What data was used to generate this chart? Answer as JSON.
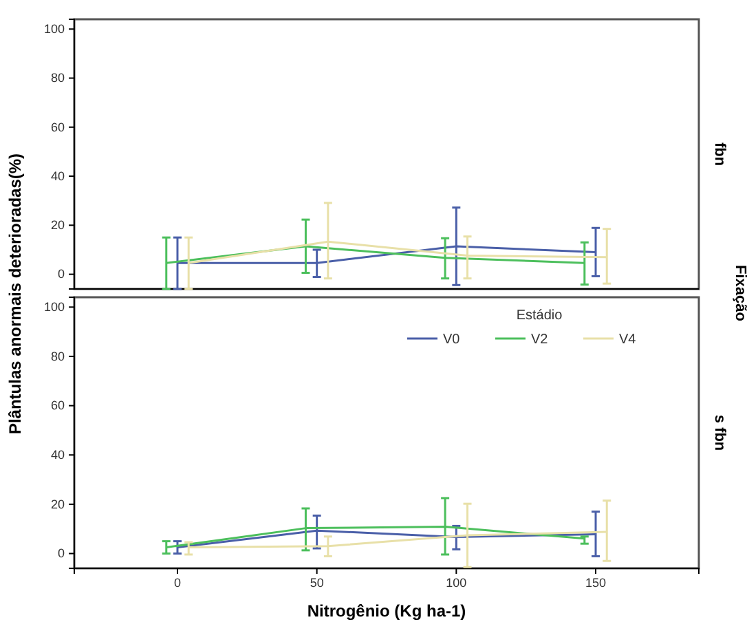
{
  "chart_data": [
    {
      "type": "line",
      "ylabel": "Plântulas anormais deterioradas(%)",
      "annotations": [
        "fbn",
        "Fixação"
      ],
      "x": [
        0,
        50,
        100,
        150
      ],
      "xlim": [
        -37,
        187
      ],
      "xticks": [
        0,
        50,
        100,
        150
      ],
      "ylim": [
        -6,
        104
      ],
      "yticks": [
        0,
        20,
        40,
        60,
        80,
        100
      ],
      "tick_labels": "y",
      "grid": false,
      "series": [
        {
          "color": "#4a5fa8",
          "values": [
            4.6,
            4.6,
            11.4,
            9
          ],
          "errors": [
            [
              -6,
              15
            ],
            [
              -1.1,
              10
            ],
            [
              -4.4,
              27.2
            ],
            [
              -0.8,
              18.9
            ]
          ]
        },
        {
          "color": "#4cbf5c",
          "x": [
            -4,
            46,
            96,
            146
          ],
          "values": [
            4.6,
            11.4,
            6.7,
            4.6
          ],
          "errors": [
            [
              -6,
              15
            ],
            [
              0.6,
              22.3
            ],
            [
              -1.7,
              14.7
            ],
            [
              -4.2,
              13
            ]
          ]
        },
        {
          "color": "#e8e0a8",
          "x": [
            4,
            54,
            104,
            154
          ],
          "values": [
            4.6,
            13.3,
            7.6,
            7
          ],
          "errors": [
            [
              -6,
              15
            ],
            [
              -1.7,
              29.1
            ],
            [
              -1.7,
              15.4
            ],
            [
              -3.8,
              18.5
            ]
          ]
        }
      ]
    },
    {
      "type": "line",
      "xlabel": "Nitrogênio (Kg ha-1)",
      "annotations": [
        "s fbn"
      ],
      "legend_title": "Estádio",
      "legend": "top right",
      "x": [
        0,
        50,
        100,
        150
      ],
      "xlim": [
        -37,
        187
      ],
      "xticks": [
        0,
        50,
        100,
        150
      ],
      "ylim": [
        -6,
        104
      ],
      "yticks": [
        0,
        20,
        40,
        60,
        80,
        100
      ],
      "grid": false,
      "series": [
        {
          "name": "V0",
          "color": "#4a5fa8",
          "values": [
            2.5,
            9.3,
            6.7,
            7.8
          ],
          "errors": [
            [
              0,
              5
            ],
            [
              2.1,
              15.4
            ],
            [
              1.7,
              11.2
            ],
            [
              -1.1,
              17
            ]
          ]
        },
        {
          "name": "V2",
          "color": "#4cbf5c",
          "x": [
            -4,
            46,
            96,
            146
          ],
          "values": [
            2.5,
            10.3,
            10.9,
            6.1
          ],
          "errors": [
            [
              0,
              5
            ],
            [
              1.3,
              18.3
            ],
            [
              -0.4,
              22.5
            ],
            [
              4,
              6.9
            ]
          ]
        },
        {
          "name": "V4",
          "color": "#e8e0a8",
          "x": [
            4,
            54,
            104,
            154
          ],
          "values": [
            2.5,
            3,
            7.4,
            8.8
          ],
          "errors": [
            [
              -0.4,
              4.6
            ],
            [
              -1.1,
              6.9
            ],
            [
              -5.5,
              20.2
            ],
            [
              -3,
              21.5
            ]
          ]
        }
      ]
    }
  ]
}
